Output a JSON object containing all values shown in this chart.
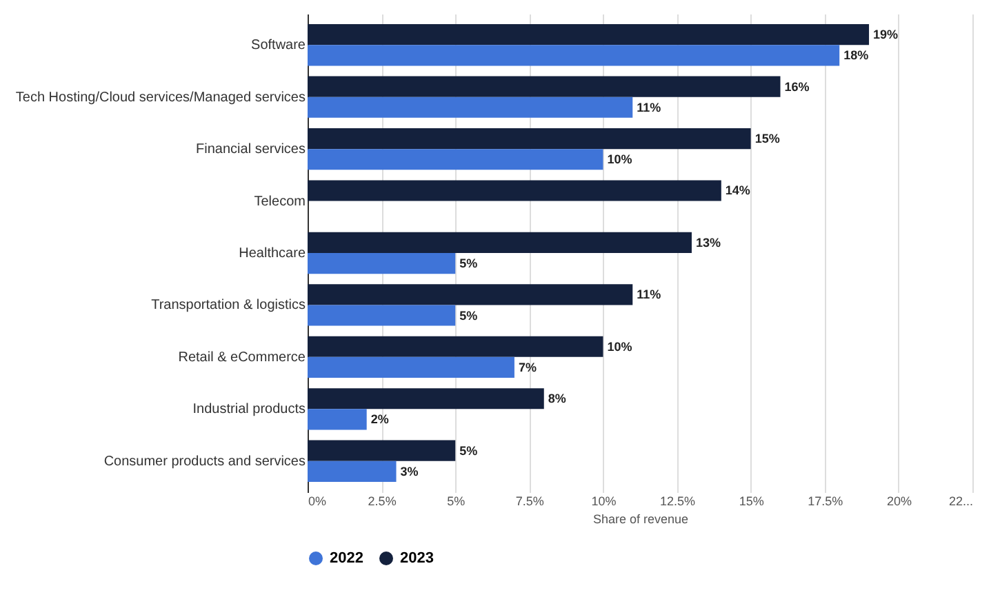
{
  "chart_data": {
    "type": "bar",
    "orientation": "horizontal",
    "xlabel": "Share of revenue",
    "categories": [
      "Software",
      "Tech Hosting/Cloud services/Managed services",
      "Financial services",
      "Telecom",
      "Healthcare",
      "Transportation & logistics",
      "Retail & eCommerce",
      "Industrial products",
      "Consumer products and services"
    ],
    "series": [
      {
        "name": "2023",
        "color": "#14213d",
        "values": [
          19,
          16,
          15,
          14,
          13,
          11,
          10,
          8,
          5
        ],
        "value_labels": [
          "19%",
          "16%",
          "15%",
          "14%",
          "13%",
          "11%",
          "10%",
          "8%",
          "5%"
        ]
      },
      {
        "name": "2022",
        "color": "#3f74d8",
        "values": [
          18,
          11,
          10,
          null,
          5,
          5,
          7,
          2,
          3
        ],
        "value_labels": [
          "18%",
          "11%",
          "10%",
          null,
          "5%",
          "5%",
          "7%",
          "2%",
          "3%"
        ]
      }
    ],
    "xlim": [
      0,
      22.5
    ],
    "xticks": [
      {
        "value": 0,
        "label": "0%"
      },
      {
        "value": 2.5,
        "label": "2.5%"
      },
      {
        "value": 5,
        "label": "5%"
      },
      {
        "value": 7.5,
        "label": "7.5%"
      },
      {
        "value": 10,
        "label": "10%"
      },
      {
        "value": 12.5,
        "label": "12.5%"
      },
      {
        "value": 15,
        "label": "15%"
      },
      {
        "value": 17.5,
        "label": "17.5%"
      },
      {
        "value": 20,
        "label": "20%"
      },
      {
        "value": 22.5,
        "label": "22..."
      }
    ],
    "grid": "x",
    "legend": "bottom"
  }
}
